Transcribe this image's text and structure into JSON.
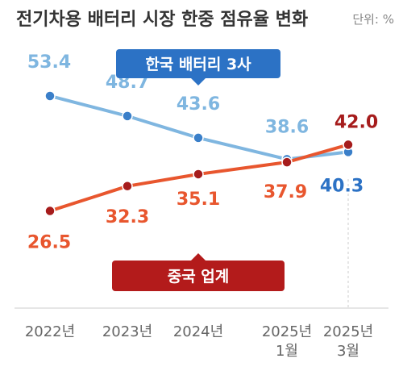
{
  "chart_data": {
    "type": "line",
    "title": "전기차용 배터리 시장 한중 점유율 변화",
    "unit": "단위: %",
    "categories": [
      [
        "2022년"
      ],
      [
        "2023년"
      ],
      [
        "2024년"
      ],
      [
        "2025년",
        "1월"
      ],
      [
        "2025년",
        "3월"
      ]
    ],
    "ylim": [
      20,
      60
    ],
    "grid": false,
    "series": [
      {
        "name": "한국 배터리 3사",
        "values": [
          53.4,
          48.7,
          43.6,
          38.6,
          40.3
        ],
        "labels": [
          "53.4",
          "48.7",
          "43.6",
          "38.6",
          "40.3"
        ],
        "line_color": "#7fb6e0",
        "point_color": "#3a7fc9",
        "label_color": "#7fb6e0",
        "last_label_color": "#2c72c5",
        "badge_color": "#2c72c5"
      },
      {
        "name": "중국 업계",
        "values": [
          26.5,
          32.3,
          35.1,
          37.9,
          42.0
        ],
        "labels": [
          "26.5",
          "32.3",
          "35.1",
          "37.9",
          "42.0"
        ],
        "line_color": "#e8562e",
        "point_color": "#a61c1c",
        "label_color": "#e8562e",
        "last_label_color": "#a61c1c",
        "badge_color": "#b31b1b"
      }
    ]
  }
}
